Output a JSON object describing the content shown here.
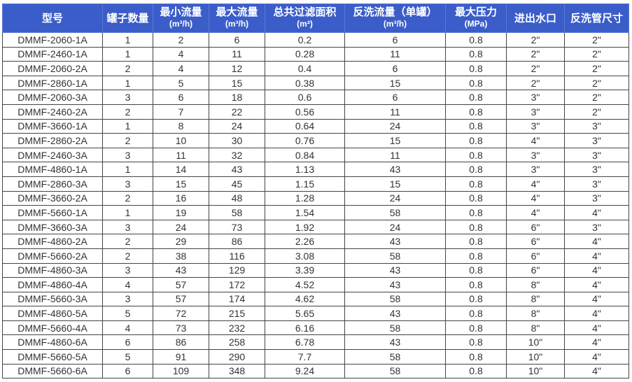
{
  "headers": [
    {
      "label": "型号",
      "unit": ""
    },
    {
      "label": "罐子数量",
      "unit": ""
    },
    {
      "label": "最小流量",
      "unit": "(m³/h)"
    },
    {
      "label": "最大流量",
      "unit": "(m³/h)"
    },
    {
      "label": "总共过滤面积",
      "unit": "(m²)"
    },
    {
      "label": "反洗流量（单罐）",
      "unit": "(m³/h)"
    },
    {
      "label": "最大压力",
      "unit": "(MPa)"
    },
    {
      "label": "进出水口",
      "unit": ""
    },
    {
      "label": "反洗管尺寸",
      "unit": ""
    }
  ],
  "rows": [
    [
      "DMMF-2060-1A",
      "1",
      "2",
      "6",
      "0.2",
      "6",
      "0.8",
      "2\"",
      "2\""
    ],
    [
      "DMMF-2460-1A",
      "1",
      "4",
      "11",
      "0.28",
      "11",
      "0.8",
      "2\"",
      "2\""
    ],
    [
      "DMMF-2060-2A",
      "2",
      "4",
      "12",
      "0.4",
      "6",
      "0.8",
      "2\"",
      "2\""
    ],
    [
      "DMMF-2860-1A",
      "1",
      "5",
      "15",
      "0.38",
      "15",
      "0.8",
      "2\"",
      "2\""
    ],
    [
      "DMMF-2060-3A",
      "3",
      "6",
      "18",
      "0.6",
      "6",
      "0.8",
      "3\"",
      "2\""
    ],
    [
      "DMMF-2460-2A",
      "2",
      "7",
      "22",
      "0.56",
      "11",
      "0.8",
      "3\"",
      "2\""
    ],
    [
      "DMMF-3660-1A",
      "1",
      "8",
      "24",
      "0.64",
      "24",
      "0.8",
      "3\"",
      "3\""
    ],
    [
      "DMMF-2860-2A",
      "2",
      "10",
      "30",
      "0.76",
      "15",
      "0.8",
      "4\"",
      "3\""
    ],
    [
      "DMMF-2460-3A",
      "3",
      "11",
      "32",
      "0.84",
      "11",
      "0.8",
      "3\"",
      "3\""
    ],
    [
      "DMMF-4860-1A",
      "1",
      "14",
      "43",
      "1.13",
      "43",
      "0.8",
      "3\"",
      "3\""
    ],
    [
      "DMMF-2860-3A",
      "3",
      "15",
      "45",
      "1.15",
      "15",
      "0.8",
      "4\"",
      "3\""
    ],
    [
      "DMMF-3660-2A",
      "2",
      "16",
      "48",
      "1.28",
      "24",
      "0.8",
      "4\"",
      "3\""
    ],
    [
      "DMMF-5660-1A",
      "1",
      "19",
      "58",
      "1.54",
      "58",
      "0.8",
      "4\"",
      "4\""
    ],
    [
      "DMMF-3660-3A",
      "3",
      "24",
      "73",
      "1.92",
      "24",
      "0.8",
      "6\"",
      "3\""
    ],
    [
      "DMMF-4860-2A",
      "2",
      "29",
      "86",
      "2.26",
      "43",
      "0.8",
      "6\"",
      "4\""
    ],
    [
      "DMMF-5660-2A",
      "2",
      "38",
      "116",
      "3.08",
      "58",
      "0.8",
      "6\"",
      "4\""
    ],
    [
      "DMMF-4860-3A",
      "3",
      "43",
      "129",
      "3.39",
      "43",
      "0.8",
      "6\"",
      "4\""
    ],
    [
      "DMMF-4860-4A",
      "4",
      "57",
      "172",
      "4.52",
      "43",
      "0.8",
      "8\"",
      "4\""
    ],
    [
      "DMMF-5660-3A",
      "3",
      "57",
      "174",
      "4.62",
      "58",
      "0.8",
      "8\"",
      "4\""
    ],
    [
      "DMMF-4860-5A",
      "5",
      "72",
      "215",
      "5.65",
      "43",
      "0.8",
      "8\"",
      "4\""
    ],
    [
      "DMMF-5660-4A",
      "4",
      "73",
      "232",
      "6.16",
      "58",
      "0.8",
      "8\"",
      "4\""
    ],
    [
      "DMMF-4860-6A",
      "6",
      "86",
      "258",
      "6.78",
      "43",
      "0.8",
      "10\"",
      "4\""
    ],
    [
      "DMMF-5660-5A",
      "5",
      "91",
      "290",
      "7.7",
      "58",
      "0.8",
      "10\"",
      "4\""
    ],
    [
      "DMMF-5660-6A",
      "6",
      "109",
      "348",
      "9.24",
      "58",
      "0.8",
      "10\"",
      "4\""
    ]
  ]
}
